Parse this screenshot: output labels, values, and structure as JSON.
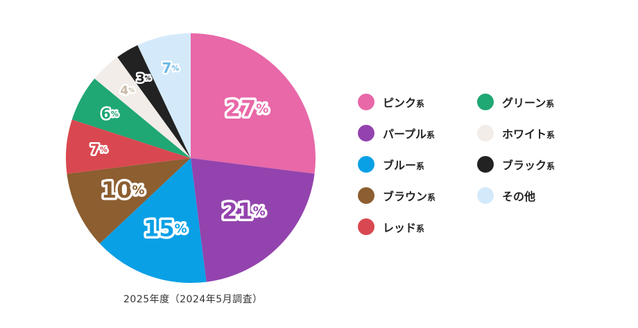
{
  "chart_data": {
    "type": "pie",
    "slices": [
      {
        "label": "ピンク系",
        "value": 27,
        "display": "27",
        "color": "#E868A8",
        "text_color": "#E868A8"
      },
      {
        "label": "パープル系",
        "value": 21,
        "display": "21",
        "color": "#9343AE",
        "text_color": "#9343AE"
      },
      {
        "label": "ブルー系",
        "value": 15,
        "display": "15",
        "color": "#0AA0E6",
        "text_color": "#0AA0E6"
      },
      {
        "label": "ブラウン系",
        "value": 10,
        "display": "10",
        "color": "#8C5E30",
        "text_color": "#8C5E30"
      },
      {
        "label": "レッド系",
        "value": 7,
        "display": "7",
        "color": "#D94850",
        "text_color": "#D94850"
      },
      {
        "label": "グリーン系",
        "value": 6,
        "display": "6",
        "color": "#1FA774",
        "text_color": "#1FA774"
      },
      {
        "label": "ホワイト系",
        "value": 4,
        "display": "4",
        "color": "#F2EDE8",
        "text_color": "#C9B8A6"
      },
      {
        "label": "ブラック系",
        "value": 3,
        "display": "3",
        "color": "#222222",
        "text_color": "#222222"
      },
      {
        "label": "その他",
        "value": 7,
        "display": "7",
        "color": "#D4EAFB",
        "text_color": "#6DB8E6"
      }
    ],
    "percent_sign": "%",
    "legend_placement": "right",
    "caption": "2025年度（2024年5月調査）"
  },
  "legend": [
    {
      "name": "ピンク",
      "suffix": "系",
      "color": "#E868A8"
    },
    {
      "name": "パープル",
      "suffix": "系",
      "color": "#9343AE"
    },
    {
      "name": "ブルー",
      "suffix": "系",
      "color": "#0AA0E6"
    },
    {
      "name": "ブラウン",
      "suffix": "系",
      "color": "#8C5E30"
    },
    {
      "name": "レッド",
      "suffix": "系",
      "color": "#D94850"
    },
    {
      "name": "グリーン",
      "suffix": "系",
      "color": "#1FA774"
    },
    {
      "name": "ホワイト",
      "suffix": "系",
      "color": "#F2EDE8"
    },
    {
      "name": "ブラック",
      "suffix": "系",
      "color": "#222222"
    },
    {
      "name": "その他",
      "suffix": "",
      "color": "#D4EAFB"
    }
  ]
}
